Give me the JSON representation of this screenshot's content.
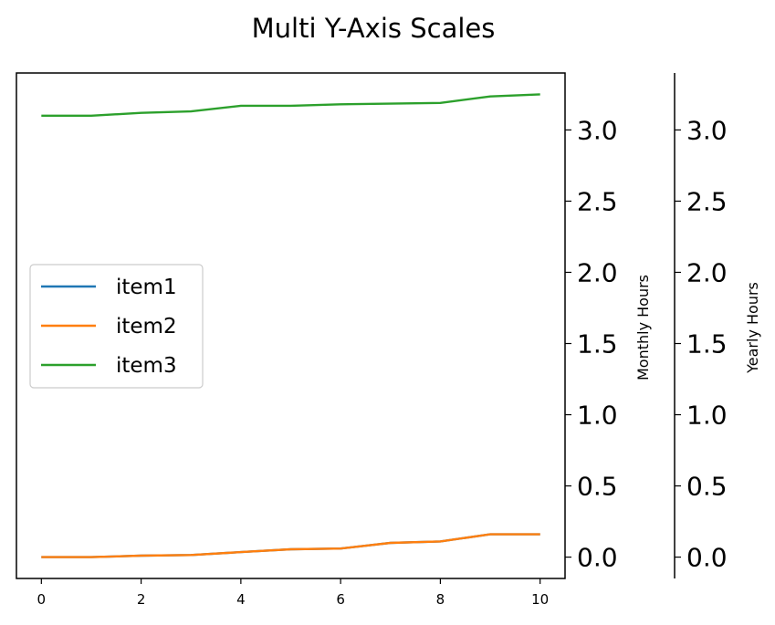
{
  "chart_data": {
    "type": "line",
    "title": "Multi Y-Axis Scales",
    "x": [
      0,
      1,
      2,
      3,
      4,
      5,
      6,
      7,
      8,
      9,
      10
    ],
    "xticks": [
      "0",
      "2",
      "4",
      "6",
      "8",
      "10"
    ],
    "xlim": [
      -0.5,
      10.5
    ],
    "ylim": [
      -0.15,
      3.4
    ],
    "series": [
      {
        "name": "item1",
        "color": "#1f77b4",
        "values": [
          0.0,
          0.0,
          0.01,
          0.015,
          0.035,
          0.055,
          0.06,
          0.1,
          0.11,
          0.16,
          0.16
        ]
      },
      {
        "name": "item2",
        "color": "#ff7f0e",
        "values": [
          0.0,
          0.0,
          0.01,
          0.015,
          0.035,
          0.055,
          0.06,
          0.1,
          0.11,
          0.16,
          0.16
        ]
      },
      {
        "name": "item3",
        "color": "#2ca02c",
        "values": [
          3.1,
          3.1,
          3.12,
          3.13,
          3.17,
          3.17,
          3.18,
          3.185,
          3.19,
          3.235,
          3.25
        ]
      }
    ],
    "right_axis_1": {
      "label": "Monthly Hours",
      "ticks": [
        "0.0",
        "0.5",
        "1.0",
        "1.5",
        "2.0",
        "2.5",
        "3.0"
      ]
    },
    "right_axis_2": {
      "label": "Yearly Hours",
      "ticks": [
        "0.0",
        "0.5",
        "1.0",
        "1.5",
        "2.0",
        "2.5",
        "3.0"
      ]
    },
    "legend_position": "center-left",
    "grid": false
  }
}
